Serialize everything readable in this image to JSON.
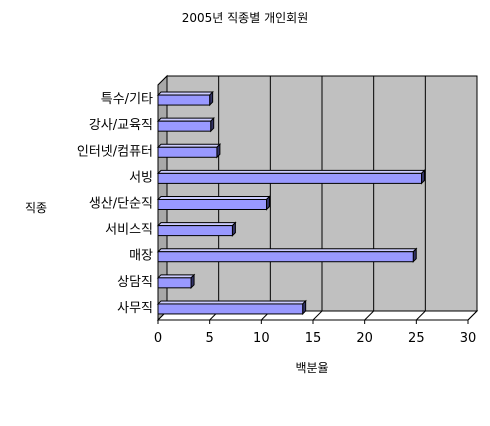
{
  "chart_data": {
    "type": "bar",
    "orientation": "horizontal",
    "title": "2005년 직종별 개인회원",
    "xlabel": "백분율",
    "ylabel": "직종",
    "categories": [
      "사무직",
      "상담직",
      "매장",
      "서비스직",
      "생산/단순직",
      "서빙",
      "인터넷/컴퓨터",
      "강사/교육직",
      "특수/기타"
    ],
    "values": [
      14,
      3.2,
      24.7,
      7.2,
      10.5,
      25.5,
      5.7,
      5.1,
      5.0
    ],
    "xlim": [
      0,
      30
    ],
    "xticks": [
      "0",
      "5",
      "10",
      "15",
      "20",
      "25",
      "30"
    ],
    "grid": true,
    "legend": "none",
    "colors": {
      "bar_fill": "#9999ff",
      "bar_shadow": "#333366",
      "plot_background": "#c0c0c0",
      "grid": "#000000"
    }
  }
}
